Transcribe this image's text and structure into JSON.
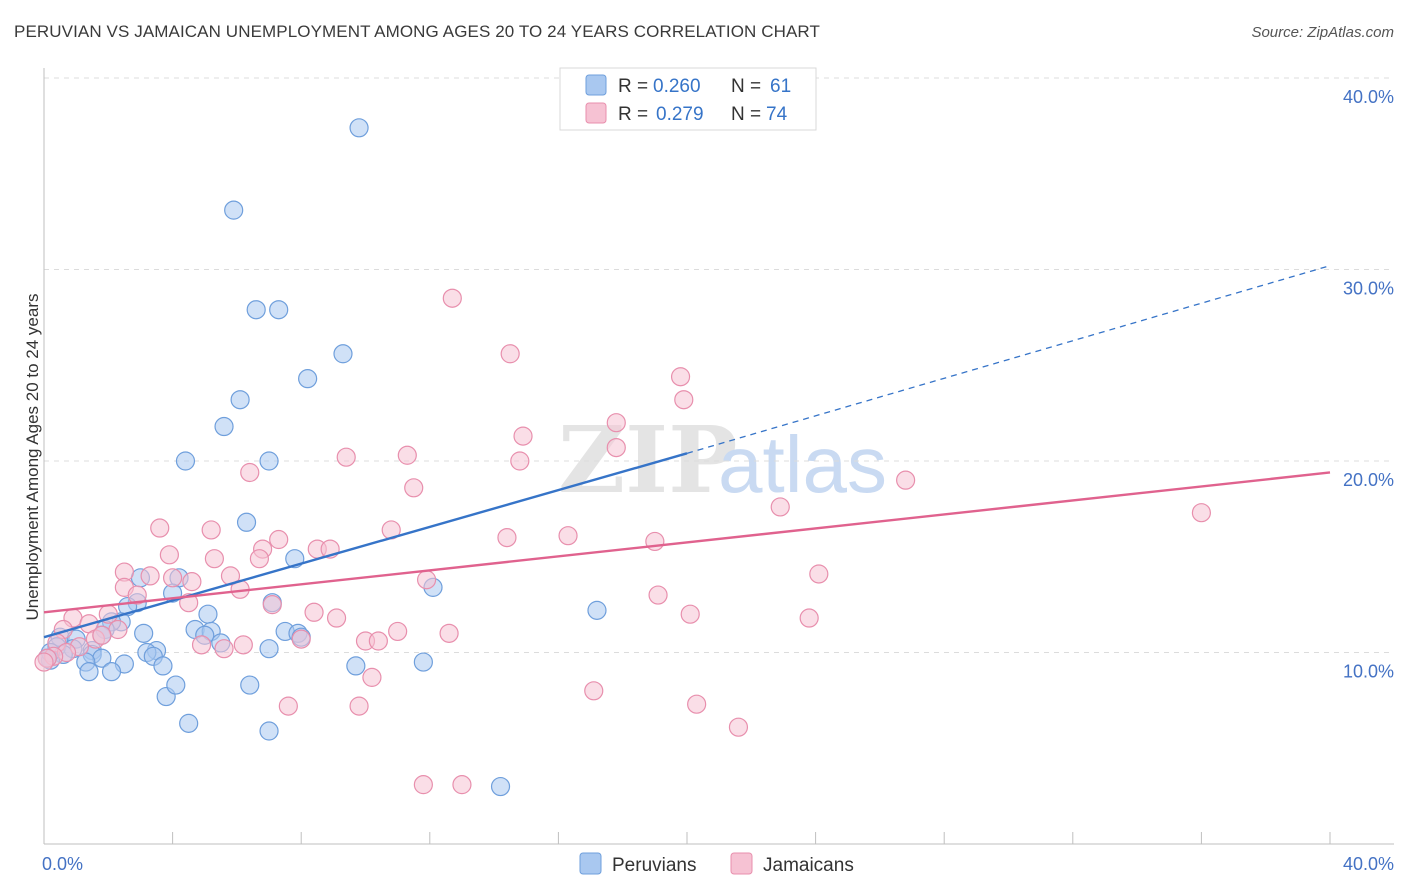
{
  "header": {
    "title": "PERUVIAN VS JAMAICAN UNEMPLOYMENT AMONG AGES 20 TO 24 YEARS CORRELATION CHART",
    "source": "Source: ZipAtlas.com"
  },
  "watermark": {
    "zip": "ZIP",
    "atlas": "atlas"
  },
  "legend": {
    "rows": [
      {
        "r_label": "R =",
        "r_value": "0.260",
        "n_label": "N =",
        "n_value": "61"
      },
      {
        "r_label": "R =",
        "r_value": "0.279",
        "n_label": "N =",
        "n_value": "74"
      }
    ]
  },
  "bottom_legend": [
    "Peruvians",
    "Jamaicans"
  ],
  "colors": {
    "peruvian_fill": "#a9c8f0",
    "peruvian_stroke": "#6f9fdc",
    "peruvian_line": "#3674c8",
    "jamaican_fill": "#f6c2d3",
    "jamaican_stroke": "#e88fad",
    "jamaican_line": "#e0628e",
    "tick_text": "#4472c4",
    "grid": "#dcdcdc"
  },
  "chart_data": {
    "type": "scatter",
    "title": "PERUVIAN VS JAMAICAN UNEMPLOYMENT AMONG AGES 20 TO 24 YEARS CORRELATION CHART",
    "xlabel": "",
    "ylabel": "Unemployment Among Ages 20 to 24 years",
    "xlim": [
      0,
      40
    ],
    "ylim": [
      0,
      40
    ],
    "x_tick_labels": [
      "0.0%",
      "40.0%"
    ],
    "y_tick_labels": [
      "10.0%",
      "20.0%",
      "30.0%",
      "40.0%"
    ],
    "y_tick_values": [
      10,
      20,
      30,
      40
    ],
    "series": [
      {
        "name": "Peruvians",
        "r": 0.26,
        "n": 61,
        "trend": {
          "solid": [
            [
              0,
              10.8
            ],
            [
              20,
              20.4
            ]
          ],
          "dashed": [
            [
              20,
              20.4
            ],
            [
              40,
              30.2
            ]
          ]
        },
        "points": [
          [
            9.8,
            37.4
          ],
          [
            5.9,
            33.1
          ],
          [
            6.6,
            27.9
          ],
          [
            7.3,
            27.9
          ],
          [
            9.3,
            25.6
          ],
          [
            8.2,
            24.3
          ],
          [
            6.1,
            23.2
          ],
          [
            5.6,
            21.8
          ],
          [
            4.4,
            20.0
          ],
          [
            7.0,
            20.0
          ],
          [
            6.3,
            16.8
          ],
          [
            7.8,
            14.9
          ],
          [
            12.1,
            13.4
          ],
          [
            17.2,
            12.2
          ],
          [
            4.2,
            13.9
          ],
          [
            3.0,
            13.9
          ],
          [
            4.0,
            13.1
          ],
          [
            2.9,
            12.6
          ],
          [
            2.6,
            12.4
          ],
          [
            7.1,
            12.6
          ],
          [
            5.1,
            12.0
          ],
          [
            2.4,
            11.6
          ],
          [
            2.1,
            11.6
          ],
          [
            1.9,
            11.2
          ],
          [
            4.7,
            11.2
          ],
          [
            5.2,
            11.1
          ],
          [
            7.5,
            11.1
          ],
          [
            7.9,
            11.0
          ],
          [
            3.1,
            11.0
          ],
          [
            5.0,
            10.9
          ],
          [
            1.8,
            10.9
          ],
          [
            8.0,
            10.8
          ],
          [
            0.5,
            10.8
          ],
          [
            1.0,
            10.7
          ],
          [
            5.5,
            10.5
          ],
          [
            0.4,
            10.3
          ],
          [
            0.9,
            10.2
          ],
          [
            1.5,
            10.1
          ],
          [
            7.0,
            10.2
          ],
          [
            3.5,
            10.1
          ],
          [
            3.2,
            10.0
          ],
          [
            3.4,
            9.8
          ],
          [
            1.5,
            9.9
          ],
          [
            0.6,
            9.9
          ],
          [
            1.8,
            9.7
          ],
          [
            0.2,
            9.6
          ],
          [
            1.3,
            9.5
          ],
          [
            2.5,
            9.4
          ],
          [
            3.7,
            9.3
          ],
          [
            9.7,
            9.3
          ],
          [
            11.8,
            9.5
          ],
          [
            1.4,
            9.0
          ],
          [
            2.1,
            9.0
          ],
          [
            3.8,
            7.7
          ],
          [
            4.1,
            8.3
          ],
          [
            6.4,
            8.3
          ],
          [
            4.5,
            6.3
          ],
          [
            7.0,
            5.9
          ],
          [
            14.2,
            3.0
          ],
          [
            0.2,
            10.0
          ],
          [
            0.1,
            9.7
          ]
        ]
      },
      {
        "name": "Jamaicans",
        "r": 0.279,
        "n": 74,
        "trend": {
          "solid": [
            [
              0,
              12.1
            ],
            [
              40,
              19.4
            ]
          ]
        },
        "points": [
          [
            12.7,
            28.5
          ],
          [
            14.5,
            25.6
          ],
          [
            19.8,
            24.4
          ],
          [
            19.9,
            23.2
          ],
          [
            17.8,
            22.0
          ],
          [
            14.9,
            21.3
          ],
          [
            17.8,
            20.7
          ],
          [
            9.4,
            20.2
          ],
          [
            11.3,
            20.3
          ],
          [
            14.8,
            20.0
          ],
          [
            6.4,
            19.4
          ],
          [
            26.8,
            19.0
          ],
          [
            11.5,
            18.6
          ],
          [
            36.0,
            17.3
          ],
          [
            22.9,
            17.6
          ],
          [
            3.6,
            16.5
          ],
          [
            5.2,
            16.4
          ],
          [
            10.8,
            16.4
          ],
          [
            14.4,
            16.0
          ],
          [
            16.3,
            16.1
          ],
          [
            19.0,
            15.8
          ],
          [
            7.3,
            15.9
          ],
          [
            6.8,
            15.4
          ],
          [
            8.5,
            15.4
          ],
          [
            3.9,
            15.1
          ],
          [
            8.9,
            15.4
          ],
          [
            5.3,
            14.9
          ],
          [
            6.7,
            14.9
          ],
          [
            2.5,
            14.2
          ],
          [
            3.3,
            14.0
          ],
          [
            4.0,
            13.9
          ],
          [
            5.8,
            14.0
          ],
          [
            11.9,
            13.8
          ],
          [
            24.1,
            14.1
          ],
          [
            2.5,
            13.4
          ],
          [
            4.6,
            13.7
          ],
          [
            6.1,
            13.3
          ],
          [
            19.1,
            13.0
          ],
          [
            2.9,
            13.0
          ],
          [
            4.5,
            12.6
          ],
          [
            7.1,
            12.5
          ],
          [
            2.0,
            12.0
          ],
          [
            8.4,
            12.1
          ],
          [
            9.1,
            11.8
          ],
          [
            20.1,
            12.0
          ],
          [
            23.8,
            11.8
          ],
          [
            0.9,
            11.8
          ],
          [
            1.4,
            11.5
          ],
          [
            2.3,
            11.2
          ],
          [
            11.0,
            11.1
          ],
          [
            12.6,
            11.0
          ],
          [
            0.6,
            11.2
          ],
          [
            1.6,
            10.7
          ],
          [
            1.1,
            10.3
          ],
          [
            0.4,
            10.5
          ],
          [
            4.9,
            10.4
          ],
          [
            5.6,
            10.2
          ],
          [
            6.2,
            10.4
          ],
          [
            8.0,
            10.7
          ],
          [
            10.0,
            10.6
          ],
          [
            10.4,
            10.6
          ],
          [
            1.8,
            10.9
          ],
          [
            0.7,
            10.0
          ],
          [
            0.3,
            9.8
          ],
          [
            10.2,
            8.7
          ],
          [
            17.1,
            8.0
          ],
          [
            20.3,
            7.3
          ],
          [
            7.6,
            7.2
          ],
          [
            9.8,
            7.2
          ],
          [
            21.6,
            6.1
          ],
          [
            11.8,
            3.1
          ],
          [
            13.0,
            3.1
          ],
          [
            0.1,
            9.7
          ],
          [
            0.0,
            9.5
          ]
        ]
      }
    ]
  }
}
